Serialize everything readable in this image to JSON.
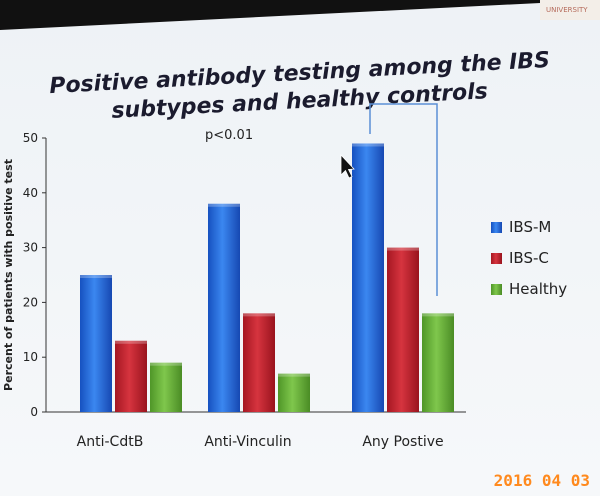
{
  "slide": {
    "title_line1": "Positive antibody testing among the IBS",
    "title_line2": "subtypes and healthy controls",
    "annotation": "p<0.01"
  },
  "chart_data": {
    "type": "bar",
    "categories": [
      "Anti-CdtB",
      "Anti-Vinculin",
      "Any Postive"
    ],
    "series": [
      {
        "name": "IBS-M",
        "values": [
          25,
          38,
          49
        ],
        "color": "#1f63d6"
      },
      {
        "name": "IBS-C",
        "values": [
          13,
          18,
          30
        ],
        "color": "#c2202c"
      },
      {
        "name": "Healthy",
        "values": [
          9,
          7,
          18
        ],
        "color": "#6ab13a"
      }
    ],
    "ylabel": "Percent of patients with positive test",
    "ylim": [
      0,
      50
    ],
    "yticks": [
      0,
      10,
      20,
      30,
      40,
      50
    ],
    "grid": false,
    "legend_position": "right"
  },
  "photo": {
    "date_stamp": "2016 04 03"
  },
  "colors": {
    "slide_background": "#f2f5f9",
    "bracket": "#5b8fd6",
    "stamp": "#ff8a1e"
  }
}
